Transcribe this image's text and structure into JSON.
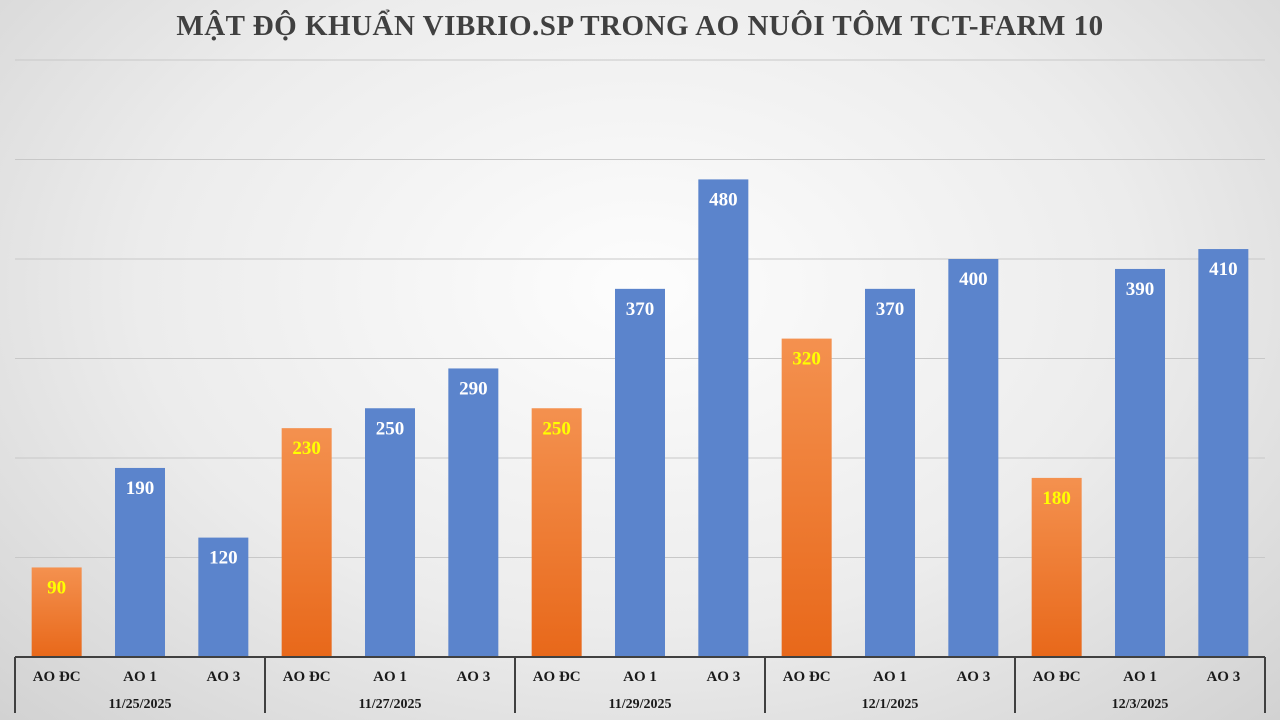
{
  "chart_data": {
    "type": "bar",
    "title": "MẬT ĐỘ KHUẨN VIBRIO.SP TRONG AO NUÔI TÔM TCT-FARM 10",
    "xlabel": "",
    "ylabel": "",
    "ylim": [
      0,
      600
    ],
    "grid": true,
    "legend": "none",
    "groups": [
      {
        "date": "11/25/2025",
        "bars": [
          {
            "label": "AO ĐC",
            "value": 90
          },
          {
            "label": "AO 1",
            "value": 190
          },
          {
            "label": "AO 3",
            "value": 120
          }
        ]
      },
      {
        "date": "11/27/2025",
        "bars": [
          {
            "label": "AO ĐC",
            "value": 230
          },
          {
            "label": "AO 1",
            "value": 250
          },
          {
            "label": "AO 3",
            "value": 290
          }
        ]
      },
      {
        "date": "11/29/2025",
        "bars": [
          {
            "label": "AO ĐC",
            "value": 250
          },
          {
            "label": "AO 1",
            "value": 370
          },
          {
            "label": "AO 3",
            "value": 480
          }
        ]
      },
      {
        "date": "12/1/2025",
        "bars": [
          {
            "label": "AO ĐC",
            "value": 320
          },
          {
            "label": "AO 1",
            "value": 370
          },
          {
            "label": "AO 3",
            "value": 400
          }
        ]
      },
      {
        "date": "12/3/2025",
        "bars": [
          {
            "label": "AO ĐC",
            "value": 180
          },
          {
            "label": "AO 1",
            "value": 390
          },
          {
            "label": "AO 3",
            "value": 410
          }
        ]
      }
    ],
    "colors": {
      "control": "#f07b2c",
      "pond": "#5b84cc",
      "control_label": "#ffff00",
      "pond_label": "#ffffff"
    }
  }
}
